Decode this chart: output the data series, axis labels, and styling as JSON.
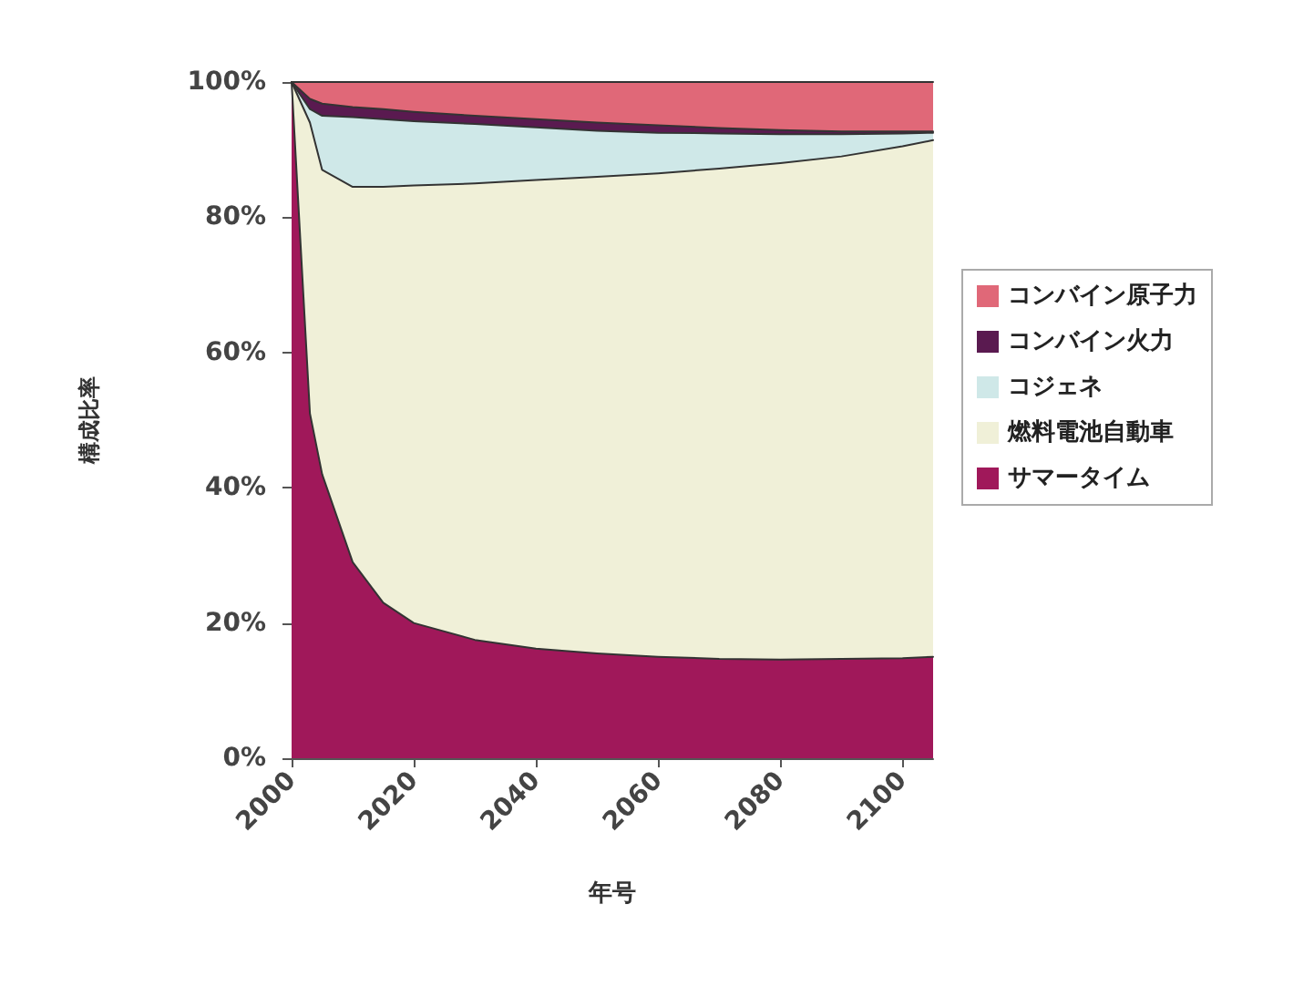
{
  "chart_data": {
    "type": "area",
    "stacked": true,
    "xlabel": "年号",
    "ylabel": "構成比率",
    "x": [
      2000,
      2003,
      2005,
      2010,
      2015,
      2020,
      2030,
      2040,
      2050,
      2060,
      2070,
      2080,
      2090,
      2100,
      2105
    ],
    "series": [
      {
        "name": "サマータイム",
        "color": "#a0185a",
        "values": [
          100,
          51,
          42,
          29,
          23,
          20,
          17.5,
          16.2,
          15.5,
          15,
          14.7,
          14.6,
          14.7,
          14.8,
          15
        ]
      },
      {
        "name": "燃料電池自動車",
        "color": "#f0f0d8",
        "values": [
          0,
          43,
          45,
          55.5,
          61.5,
          64.7,
          67.5,
          69.3,
          70.5,
          71.5,
          72.5,
          73.4,
          74.3,
          75.7,
          76.4
        ]
      },
      {
        "name": "コジェネ",
        "color": "#cfe8e8",
        "values": [
          0,
          2,
          8,
          10.3,
          10,
          9.5,
          8.8,
          7.8,
          6.8,
          6,
          5.2,
          4.3,
          3.3,
          1.9,
          1.1
        ]
      },
      {
        "name": "コンバイン火力",
        "color": "#5a1a50",
        "values": [
          0,
          1.5,
          1.8,
          1.5,
          1.5,
          1.4,
          1.2,
          1.2,
          1.2,
          1.1,
          0.8,
          0.6,
          0.4,
          0.3,
          0.2
        ]
      },
      {
        "name": "コンバイン原子力",
        "color": "#e06878",
        "values": [
          0,
          2.5,
          3.2,
          3.7,
          4,
          4.4,
          5,
          5.5,
          6,
          6.4,
          6.8,
          7.1,
          7.3,
          7.3,
          7.3
        ]
      }
    ],
    "xlim": [
      2000,
      2105
    ],
    "xticks": [
      2000,
      2020,
      2040,
      2060,
      2080,
      2100
    ],
    "ylim": [
      0,
      100
    ],
    "yticks": [
      {
        "value": 0,
        "label": "0%"
      },
      {
        "value": 20,
        "label": "20%"
      },
      {
        "value": 40,
        "label": "40%"
      },
      {
        "value": 60,
        "label": "60%"
      },
      {
        "value": 80,
        "label": "80%"
      },
      {
        "value": 100,
        "label": "100%"
      }
    ],
    "legend": "right"
  }
}
